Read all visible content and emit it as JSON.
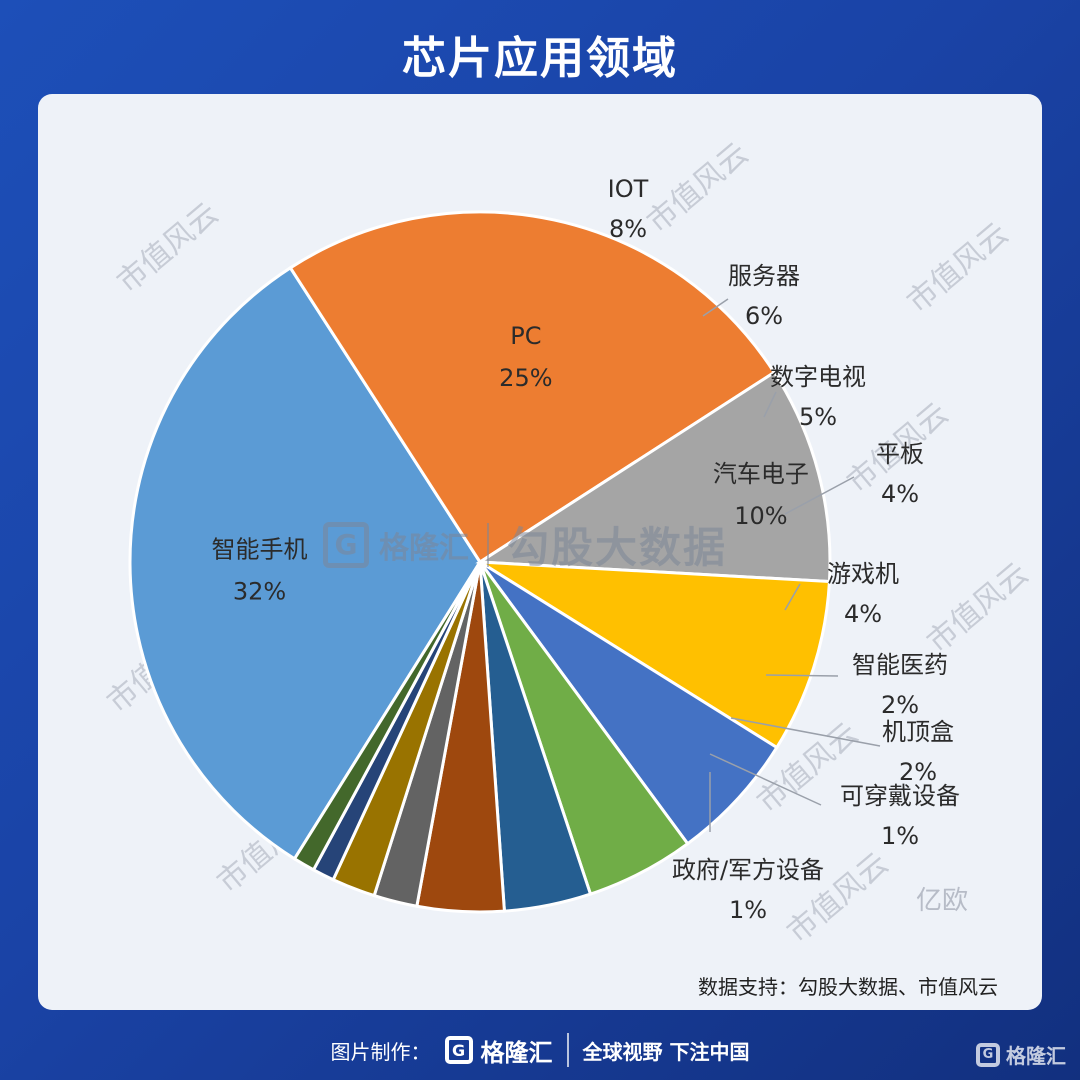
{
  "title": "芯片应用领域",
  "source": "数据支持：勾股大数据、市值风云",
  "watermark": {
    "brand": "格隆汇",
    "center_text": "勾股大数据",
    "repeat_text": "市值风云",
    "corner_text": "亿欧"
  },
  "footer": {
    "label": "图片制作：",
    "brand": "格隆汇",
    "slogan": "全球视野 下注中国"
  },
  "corner_brand": "格隆汇",
  "chart_data": {
    "type": "pie",
    "title": "",
    "slices": [
      {
        "label": "智能手机",
        "value": 32,
        "pct_text": "32%",
        "color": "#5b9bd5"
      },
      {
        "label": "PC",
        "value": 25,
        "pct_text": "25%",
        "color": "#ed7d31"
      },
      {
        "label": "汽车电子",
        "value": 10,
        "pct_text": "10%",
        "color": "#a5a5a5"
      },
      {
        "label": "IOT",
        "value": 8,
        "pct_text": "8%",
        "color": "#ffc000"
      },
      {
        "label": "服务器",
        "value": 6,
        "pct_text": "6%",
        "color": "#4472c4"
      },
      {
        "label": "数字电视",
        "value": 5,
        "pct_text": "5%",
        "color": "#70ad47"
      },
      {
        "label": "平板",
        "value": 4,
        "pct_text": "4%",
        "color": "#255e91"
      },
      {
        "label": "游戏机",
        "value": 4,
        "pct_text": "4%",
        "color": "#9e480e"
      },
      {
        "label": "智能医药",
        "value": 2,
        "pct_text": "2%",
        "color": "#636363"
      },
      {
        "label": "机顶盒",
        "value": 2,
        "pct_text": "2%",
        "color": "#997300"
      },
      {
        "label": "可穿戴设备",
        "value": 1,
        "pct_text": "1%",
        "color": "#264478"
      },
      {
        "label": "政府/军方设备",
        "value": 1,
        "pct_text": "1%",
        "color": "#43682b"
      }
    ]
  }
}
